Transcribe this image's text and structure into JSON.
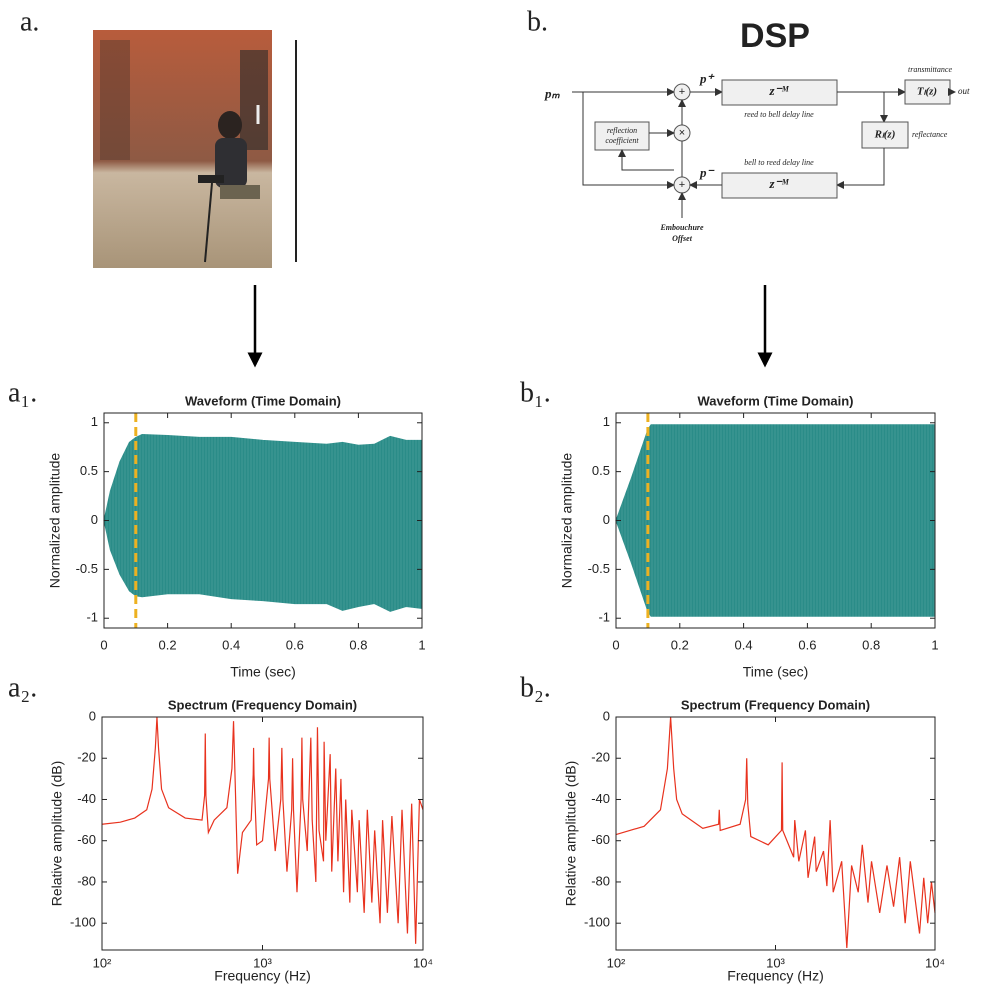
{
  "panels": {
    "a": "a.",
    "b": "b.",
    "a1": "a₁.",
    "a2": "a₂.",
    "b1": "b₁.",
    "b2": "b₂."
  },
  "diagram": {
    "title": "DSP",
    "input": "pₘ",
    "forward": "p⁺",
    "backward": "p⁻",
    "delay_top": "z⁻ᴹ",
    "delay_bottom": "z⁻ᴹ",
    "delay_top_caption": "reed to bell delay line",
    "delay_bottom_caption": "bell to reed delay line",
    "transmittance": "transmittance",
    "transmittance_box": "Tₗ(z)",
    "output": "out",
    "reflectance": "reflectance",
    "reflectance_box": "Rₗ(z)",
    "reflection_line1": "reflection",
    "reflection_line2": "coefficient",
    "offset_line1": "Embouchure",
    "offset_line2": "Offset"
  },
  "chart_data": [
    {
      "type": "waveform",
      "title": "Waveform (Time Domain)",
      "xlabel": "Time (sec)",
      "ylabel": "Normalized amplitude",
      "color": "#2a8c88",
      "x": [
        0,
        0.02,
        0.05,
        0.08,
        0.1,
        0.12,
        0.2,
        0.3,
        0.4,
        0.5,
        0.6,
        0.7,
        0.75,
        0.8,
        0.85,
        0.9,
        0.95,
        1
      ],
      "upper": [
        0,
        0.3,
        0.6,
        0.8,
        0.85,
        0.88,
        0.87,
        0.85,
        0.85,
        0.82,
        0.8,
        0.78,
        0.8,
        0.77,
        0.78,
        0.86,
        0.82,
        0.82
      ],
      "lower": [
        0,
        -0.3,
        -0.55,
        -0.72,
        -0.77,
        -0.78,
        -0.75,
        -0.75,
        -0.8,
        -0.82,
        -0.85,
        -0.85,
        -0.92,
        -0.88,
        -0.85,
        -0.93,
        -0.88,
        -0.9
      ],
      "vline": {
        "x": 0.1,
        "color": "#edb120"
      },
      "xlim": [
        0,
        1
      ],
      "xticks": [
        0,
        0.2,
        0.4,
        0.6,
        0.8,
        1
      ],
      "ylim": [
        -1.1,
        1.1
      ],
      "yticks": [
        -1,
        -0.5,
        0,
        0.5,
        1
      ]
    },
    {
      "type": "waveform",
      "title": "Waveform (Time Domain)",
      "xlabel": "Time (sec)",
      "ylabel": "Normalized amplitude",
      "color": "#2a8c88",
      "x": [
        0,
        0.05,
        0.1,
        0.11,
        1
      ],
      "upper": [
        0,
        0.45,
        0.93,
        0.98,
        0.98
      ],
      "lower": [
        0,
        -0.45,
        -0.93,
        -0.98,
        -0.98
      ],
      "vline": {
        "x": 0.1,
        "color": "#edb120"
      },
      "xlim": [
        0,
        1
      ],
      "xticks": [
        0,
        0.2,
        0.4,
        0.6,
        0.8,
        1
      ],
      "ylim": [
        -1.1,
        1.1
      ],
      "yticks": [
        -1,
        -0.5,
        0,
        0.5,
        1
      ]
    },
    {
      "type": "spectrum",
      "title": "Spectrum (Frequency Domain)",
      "xlabel": "Frequency (Hz)",
      "ylabel": "Relative amplitude (dB)",
      "color": "#e8321e",
      "xscale": "log",
      "x": [
        100,
        130,
        160,
        190,
        205,
        215,
        220,
        225,
        235,
        260,
        330,
        420,
        436,
        440,
        444,
        460,
        500,
        600,
        645,
        660,
        675,
        700,
        750,
        850,
        875,
        880,
        885,
        920,
        1000,
        1090,
        1100,
        1110,
        1200,
        1300,
        1320,
        1340,
        1420,
        1520,
        1540,
        1560,
        1640,
        1740,
        1760,
        1780,
        1900,
        1980,
        2000,
        2040,
        2150,
        2200,
        2250,
        2400,
        2420,
        2480,
        2640,
        2700,
        2860,
        2950,
        3080,
        3200,
        3300,
        3500,
        3600,
        3900,
        4000,
        4300,
        4500,
        4800,
        5000,
        5400,
        5600,
        6000,
        6400,
        7000,
        7400,
        8000,
        8500,
        9000,
        9500,
        10000
      ],
      "values": [
        -52,
        -51,
        -49,
        -45,
        -35,
        -15,
        0,
        -15,
        -35,
        -44,
        -49,
        -50,
        -38,
        -8,
        -38,
        -56,
        -50,
        -44,
        -25,
        -2,
        -30,
        -76,
        -56,
        -50,
        -28,
        -15,
        -28,
        -62,
        -60,
        -30,
        -10,
        -30,
        -65,
        -40,
        -15,
        -40,
        -75,
        -45,
        -20,
        -45,
        -85,
        -40,
        -10,
        -40,
        -65,
        -20,
        -10,
        -50,
        -80,
        -5,
        -55,
        -70,
        -12,
        -60,
        -18,
        -75,
        -25,
        -70,
        -30,
        -85,
        -40,
        -90,
        -45,
        -85,
        -50,
        -95,
        -45,
        -90,
        -55,
        -100,
        -50,
        -95,
        -48,
        -100,
        -45,
        -105,
        -42,
        -110,
        -40,
        -45
      ],
      "xlim": [
        100,
        10000
      ],
      "xticks": [
        {
          "value": 100,
          "label": "10²"
        },
        {
          "value": 1000,
          "label": "10³"
        },
        {
          "value": 10000,
          "label": "10⁴"
        }
      ],
      "ylim": [
        -113,
        0
      ],
      "yticks": [
        -100,
        -80,
        -60,
        -40,
        -20,
        0
      ]
    },
    {
      "type": "spectrum",
      "title": "Spectrum (Frequency Domain)",
      "xlabel": "Frequency (Hz)",
      "ylabel": "Relative amplitude (dB)",
      "color": "#e8321e",
      "xscale": "log",
      "x": [
        100,
        150,
        190,
        210,
        220,
        230,
        240,
        260,
        350,
        440,
        444,
        450,
        600,
        650,
        660,
        670,
        700,
        900,
        1090,
        1100,
        1110,
        1300,
        1320,
        1400,
        1540,
        1600,
        1760,
        1800,
        2000,
        2100,
        2200,
        2300,
        2600,
        2800,
        3000,
        3300,
        3500,
        3800,
        4000,
        4500,
        5000,
        5500,
        6000,
        6500,
        7000,
        8000,
        8500,
        9000,
        9500,
        10000
      ],
      "values": [
        -57,
        -53,
        -45,
        -25,
        0,
        -25,
        -40,
        -47,
        -54,
        -52,
        -45,
        -55,
        -52,
        -40,
        -20,
        -42,
        -58,
        -62,
        -55,
        -22,
        -55,
        -68,
        -50,
        -70,
        -55,
        -78,
        -58,
        -75,
        -65,
        -82,
        -50,
        -85,
        -70,
        -112,
        -72,
        -85,
        -62,
        -90,
        -70,
        -95,
        -72,
        -92,
        -68,
        -100,
        -70,
        -105,
        -78,
        -100,
        -80,
        -95
      ],
      "xlim": [
        100,
        10000
      ],
      "xticks": [
        {
          "value": 100,
          "label": "10²"
        },
        {
          "value": 1000,
          "label": "10³"
        },
        {
          "value": 10000,
          "label": "10⁴"
        }
      ],
      "ylim": [
        -113,
        0
      ],
      "yticks": [
        -100,
        -80,
        -60,
        -40,
        -20,
        0
      ]
    }
  ]
}
